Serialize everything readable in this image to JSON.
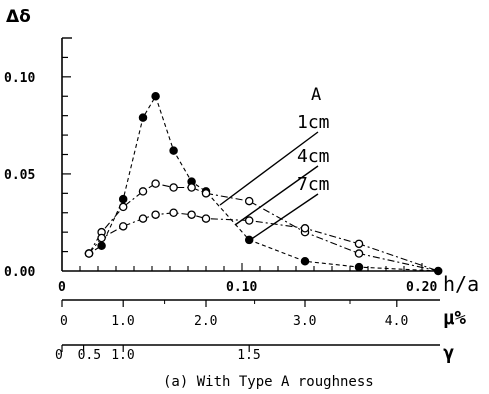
{
  "chart_data": {
    "type": "line",
    "title": "",
    "ylabel": "Δδ",
    "xlabel": "h/a",
    "ylim": [
      0,
      0.12
    ],
    "xlim": [
      0,
      0.21
    ],
    "y_ticks": [
      "0.00",
      "0.05",
      "0.10"
    ],
    "x_ticks": [
      "0",
      "0.10",
      "0.20"
    ],
    "legend_title": "A",
    "grid": false,
    "series": [
      {
        "name": "1cm",
        "marker": "filled-circle",
        "line": "dashed",
        "x": [
          0.015,
          0.022,
          0.034,
          0.045,
          0.052,
          0.062,
          0.072,
          0.08,
          0.104,
          0.135,
          0.165,
          0.209
        ],
        "values": [
          0.009,
          0.013,
          0.037,
          0.079,
          0.09,
          0.062,
          0.046,
          0.041,
          0.016,
          0.005,
          0.002,
          0.0
        ]
      },
      {
        "name": "4cm",
        "marker": "open-circle",
        "line": "dash-dot",
        "x": [
          0.015,
          0.022,
          0.034,
          0.045,
          0.052,
          0.062,
          0.072,
          0.08,
          0.104,
          0.135,
          0.165,
          0.209
        ],
        "values": [
          0.009,
          0.02,
          0.033,
          0.041,
          0.045,
          0.043,
          0.043,
          0.04,
          0.036,
          0.02,
          0.009,
          0.0
        ]
      },
      {
        "name": "7cm",
        "marker": "open-circle",
        "line": "dash-dot",
        "x": [
          0.015,
          0.022,
          0.034,
          0.045,
          0.052,
          0.062,
          0.072,
          0.08,
          0.104,
          0.135,
          0.165,
          0.209
        ],
        "values": [
          0.009,
          0.017,
          0.023,
          0.027,
          0.029,
          0.03,
          0.029,
          0.027,
          0.026,
          0.022,
          0.014,
          0.0
        ]
      }
    ],
    "secondary_axes": [
      {
        "label": "μ%",
        "ticks": [
          {
            "label": "0",
            "h_over_a": 0.0
          },
          {
            "label": "1.0",
            "h_over_a": 0.034
          },
          {
            "label": "2.0",
            "h_over_a": 0.08
          },
          {
            "label": "3.0",
            "h_over_a": 0.135
          },
          {
            "label": "4.0",
            "h_over_a": 0.186
          }
        ]
      },
      {
        "label": "γ",
        "ticks": [
          {
            "label": "0",
            "h_over_a": 0.0
          },
          {
            "label": "0.5",
            "h_over_a": 0.012
          },
          {
            "label": "1.0",
            "h_over_a": 0.034
          },
          {
            "label": "1.5",
            "h_over_a": 0.104
          }
        ]
      }
    ],
    "caption": "(a) With Type A roughness"
  }
}
